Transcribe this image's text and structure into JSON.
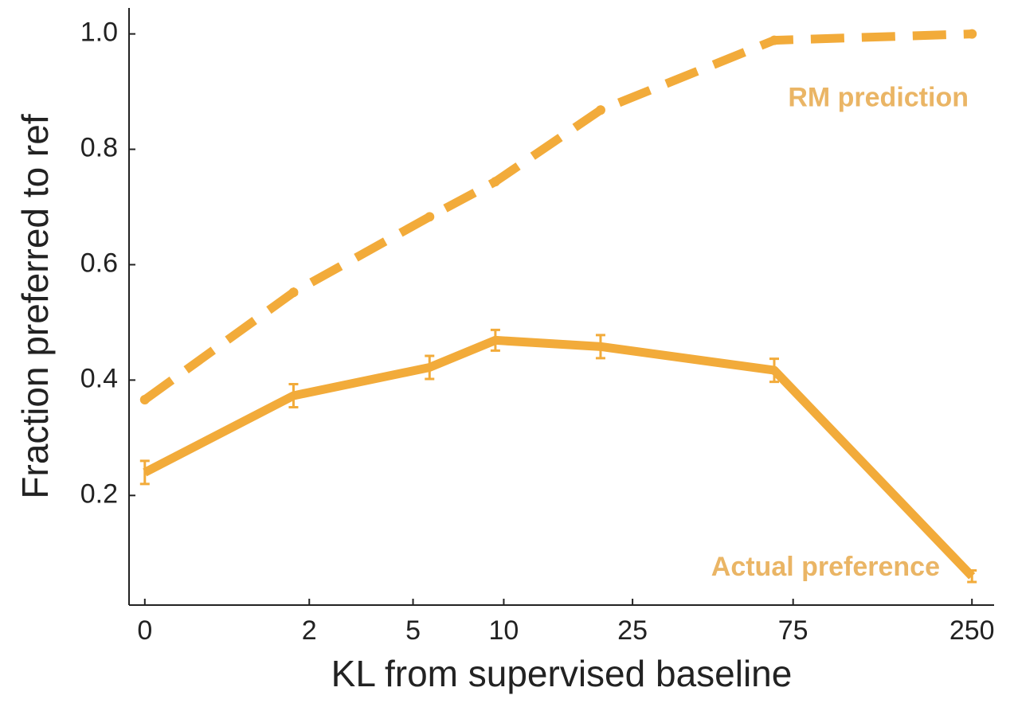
{
  "chart_data": {
    "type": "line",
    "xlabel": "KL from supervised baseline",
    "ylabel": "Fraction preferred to ref",
    "xscale": "log1p",
    "xlim": [
      -0.1,
      290
    ],
    "xticks": [
      0,
      2,
      5,
      10,
      25,
      75,
      250
    ],
    "ylim": [
      0.01,
      1.045
    ],
    "yticks": [
      0.2,
      0.4,
      0.6,
      0.8,
      {
        "value": 1,
        "label": "1.0"
      }
    ],
    "x": [
      0,
      1.7,
      5.7,
      9.4,
      20,
      66,
      250
    ],
    "series": [
      {
        "name": "RM prediction",
        "color": "#f2ab3a",
        "dashed": true,
        "values": [
          0.366,
          0.552,
          0.683,
          0.744,
          0.868,
          0.989,
          1.0
        ]
      },
      {
        "name": "Actual preference",
        "color": "#f2ab3a",
        "dashed": false,
        "values": [
          0.24,
          0.373,
          0.422,
          0.469,
          0.458,
          0.417,
          0.06
        ],
        "errors": [
          0.02,
          0.02,
          0.02,
          0.018,
          0.02,
          0.02,
          0.01
        ]
      }
    ]
  }
}
